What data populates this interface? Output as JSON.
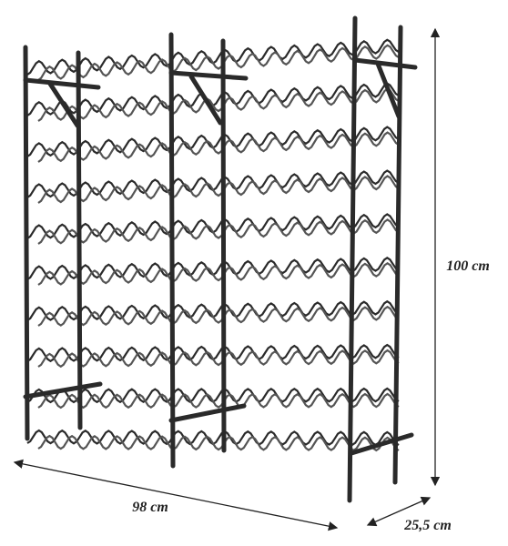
{
  "dimensions": {
    "width": "98 cm",
    "height": "100 cm",
    "depth": "25,5 cm"
  }
}
